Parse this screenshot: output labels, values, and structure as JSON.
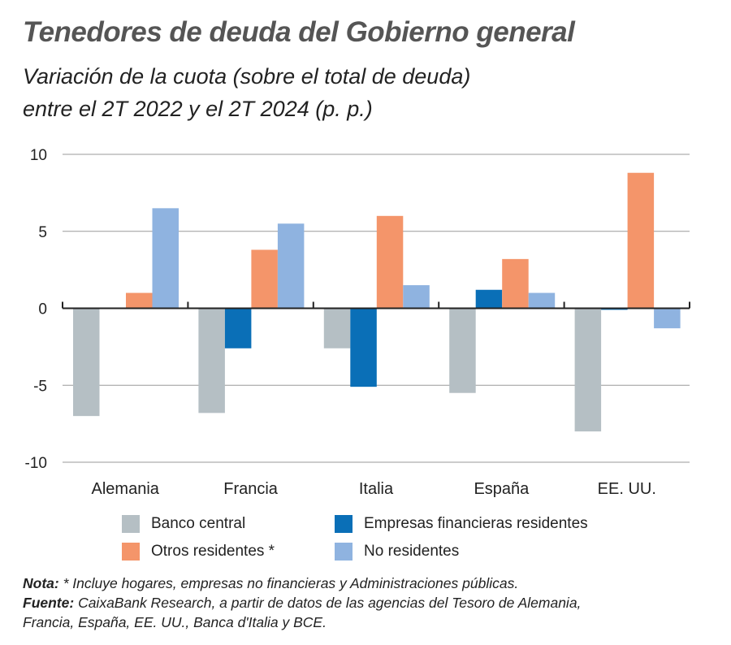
{
  "chart_data": {
    "type": "bar",
    "title": "Tenedores de deuda del Gobierno general",
    "subtitle_line1": "Variación de la cuota (sobre el total de deuda)",
    "subtitle_line2": "entre el 2T 2022 y el 2T 2024 (p. p.)",
    "categories": [
      "Alemania",
      "Francia",
      "Italia",
      "España",
      "EE. UU."
    ],
    "ylim": [
      -10,
      10
    ],
    "yticks": [
      10,
      5,
      0,
      -5,
      -10
    ],
    "ytick_labels": [
      "10",
      "5",
      "0",
      "-5",
      "-10"
    ],
    "grid": true,
    "legend_position": "bottom",
    "series": [
      {
        "name": "Banco central",
        "color": "#b5bfc4",
        "values": [
          -7.0,
          -6.8,
          -2.6,
          -5.5,
          -8.0
        ]
      },
      {
        "name": "Empresas financieras residentes",
        "color": "#0a6fb7",
        "values": [
          0,
          -2.6,
          -5.1,
          1.2,
          -0.1
        ]
      },
      {
        "name": "Otros residentes *",
        "color": "#f4956a",
        "values": [
          1.0,
          3.8,
          6.0,
          3.2,
          8.8
        ]
      },
      {
        "name": "No residentes",
        "color": "#8fb3e0",
        "values": [
          6.5,
          5.5,
          1.5,
          1.0,
          -1.3
        ]
      }
    ]
  },
  "notes": {
    "nota_label": "Nota:",
    "nota_text": " * Incluye hogares, empresas no financieras y Administraciones públicas.",
    "fuente_label": "Fuente:",
    "fuente_text": " CaixaBank Research, a partir de datos de las agencias del Tesoro de Alemania,",
    "fuente_text2": "Francia, España, EE. UU., Banca d'Italia y BCE."
  }
}
